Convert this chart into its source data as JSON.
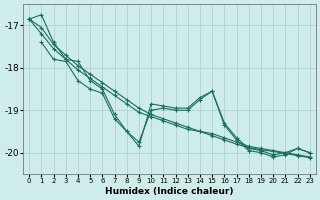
{
  "xlabel": "Humidex (Indice chaleur)",
  "background_color": "#ceecea",
  "grid_color": "#aed4d0",
  "line_color": "#1a6e60",
  "xlim": [
    -0.5,
    23.5
  ],
  "ylim": [
    -20.5,
    -16.5
  ],
  "yticks": [
    -20,
    -19,
    -18,
    -17
  ],
  "xticks": [
    0,
    1,
    2,
    3,
    4,
    5,
    6,
    7,
    8,
    9,
    10,
    11,
    12,
    13,
    14,
    15,
    16,
    17,
    18,
    19,
    20,
    21,
    22,
    23
  ],
  "series": [
    {
      "x": [
        0,
        1,
        2,
        3,
        4,
        5,
        6,
        7,
        8,
        9,
        10,
        11,
        12,
        13,
        14,
        15,
        16,
        17,
        18,
        19,
        20,
        21,
        22,
        23
      ],
      "y": [
        -16.85,
        -17.05,
        -17.45,
        -17.7,
        -17.95,
        -18.15,
        -18.35,
        -18.55,
        -18.75,
        -18.95,
        -19.1,
        -19.2,
        -19.3,
        -19.4,
        -19.5,
        -19.55,
        -19.65,
        -19.75,
        -19.85,
        -19.9,
        -19.95,
        -20.0,
        -20.05,
        -20.1
      ]
    },
    {
      "x": [
        0,
        1,
        2,
        3,
        4,
        5,
        6,
        7,
        8,
        9,
        10,
        11,
        12,
        13,
        14,
        15,
        16,
        17,
        18,
        19,
        20,
        21,
        22,
        23
      ],
      "y": [
        -16.85,
        -17.2,
        -17.55,
        -17.8,
        -18.05,
        -18.25,
        -18.45,
        -18.65,
        -18.85,
        -19.05,
        -19.15,
        -19.25,
        -19.35,
        -19.45,
        -19.5,
        -19.6,
        -19.7,
        -19.8,
        -19.88,
        -19.93,
        -19.97,
        -20.02,
        -20.07,
        -20.12
      ]
    },
    {
      "x": [
        0,
        1,
        2,
        3,
        4,
        5,
        6,
        7,
        8,
        9,
        10,
        11,
        12,
        13,
        14,
        15,
        16,
        17,
        18,
        19,
        20,
        21,
        22,
        23
      ],
      "y": [
        -16.85,
        -16.75,
        -17.4,
        -17.8,
        -17.85,
        -18.3,
        -18.5,
        -19.1,
        -19.5,
        -19.85,
        -18.85,
        -18.9,
        -18.95,
        -18.95,
        -18.7,
        -18.55,
        -19.3,
        -19.65,
        -19.9,
        -19.95,
        -20.05,
        -20.0,
        -19.9,
        -20.0
      ]
    },
    {
      "x": [
        1,
        2,
        3,
        4,
        5,
        6,
        7,
        8,
        9,
        10,
        11,
        12,
        13,
        14,
        15,
        16,
        17,
        18,
        19,
        20,
        21,
        22,
        23
      ],
      "y": [
        -17.4,
        -17.8,
        -17.85,
        -18.3,
        -18.5,
        -18.6,
        -19.2,
        -19.5,
        -19.75,
        -19.0,
        -18.95,
        -19.0,
        -19.0,
        -18.75,
        -18.55,
        -19.35,
        -19.7,
        -19.95,
        -20.0,
        -20.1,
        -20.05,
        -19.9,
        -20.0
      ]
    }
  ]
}
